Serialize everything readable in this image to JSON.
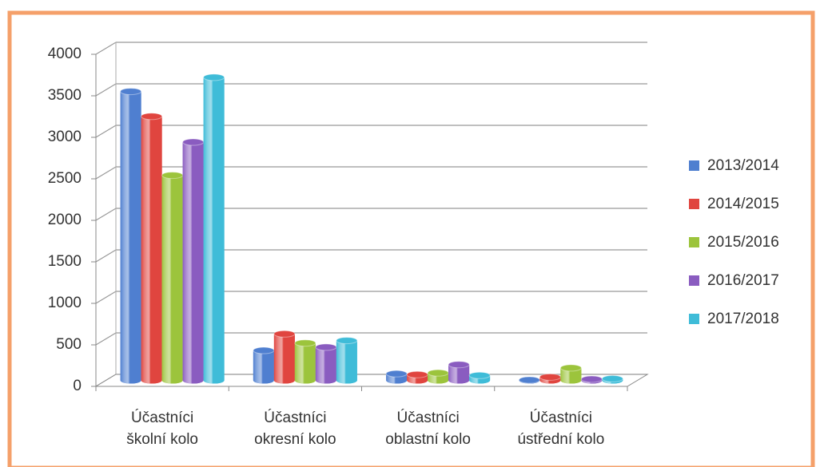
{
  "chart_data": {
    "type": "bar",
    "categories": [
      [
        "Účastníci",
        "školní kolo"
      ],
      [
        "Účastníci",
        "okresní kolo"
      ],
      [
        "Účastníci",
        "oblastní kolo"
      ],
      [
        "Účastníci",
        "ústřední kolo"
      ]
    ],
    "series": [
      {
        "name": "2013/2014",
        "color": "#4f7fd0",
        "values": [
          3480,
          360,
          80,
          5
        ]
      },
      {
        "name": "2014/2015",
        "color": "#e0453f",
        "values": [
          3180,
          560,
          70,
          40
        ]
      },
      {
        "name": "2015/2016",
        "color": "#9cc43c",
        "values": [
          2470,
          450,
          90,
          150
        ]
      },
      {
        "name": "2016/2017",
        "color": "#8a5cc0",
        "values": [
          2870,
          400,
          190,
          15
        ]
      },
      {
        "name": "2017/2018",
        "color": "#3fbcd8",
        "values": [
          3650,
          480,
          60,
          20
        ]
      }
    ],
    "ylim": [
      0,
      4000
    ],
    "yticks": [
      0,
      500,
      1000,
      1500,
      2000,
      2500,
      3000,
      3500,
      4000
    ],
    "grid": true,
    "legend": "right"
  }
}
